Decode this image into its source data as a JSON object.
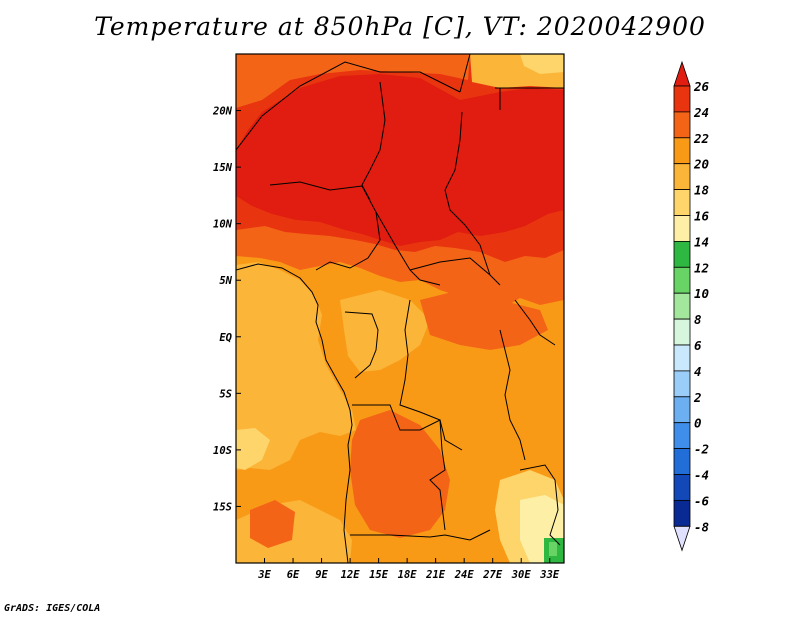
{
  "title": "Temperature at 850hPa [C], VT: 2020042900",
  "credit": "GrADS: IGES/COLA",
  "map": {
    "lon_range": [
      0,
      34.5
    ],
    "lat_range": [
      -20,
      25
    ],
    "lon_ticks": [
      {
        "value": 3,
        "label": "3E"
      },
      {
        "value": 6,
        "label": "6E"
      },
      {
        "value": 9,
        "label": "9E"
      },
      {
        "value": 12,
        "label": "12E"
      },
      {
        "value": 15,
        "label": "15E"
      },
      {
        "value": 18,
        "label": "18E"
      },
      {
        "value": 21,
        "label": "21E"
      },
      {
        "value": 24,
        "label": "24E"
      },
      {
        "value": 27,
        "label": "27E"
      },
      {
        "value": 30,
        "label": "30E"
      },
      {
        "value": 33,
        "label": "33E"
      }
    ],
    "lat_ticks": [
      {
        "value": 20,
        "label": "20N"
      },
      {
        "value": 15,
        "label": "15N"
      },
      {
        "value": 10,
        "label": "10N"
      },
      {
        "value": 5,
        "label": "5N"
      },
      {
        "value": 0,
        "label": "EQ"
      },
      {
        "value": -5,
        "label": "5S"
      },
      {
        "value": -10,
        "label": "10S"
      },
      {
        "value": -15,
        "label": "15S"
      }
    ]
  },
  "colorbar": {
    "levels": [
      26,
      24,
      22,
      20,
      18,
      16,
      14,
      12,
      10,
      8,
      6,
      4,
      2,
      0,
      -2,
      -4,
      -6,
      -8
    ],
    "labels": [
      "26",
      "24",
      "22",
      "20",
      "18",
      "16",
      "14",
      "12",
      "10",
      "8",
      "6",
      "4",
      "2",
      "0",
      "-2",
      "-4",
      "-6",
      "-8"
    ],
    "colors": [
      "#e62a13",
      "#f15a16",
      "#f98814",
      "#fba727",
      "#fdc54d",
      "#fde37f",
      "#fff8b0",
      "#3cc24a",
      "#7ddb7a",
      "#b5ecb0",
      "#e4f9f5",
      "#bfe3fb",
      "#8dc6f8",
      "#5da8f3",
      "#2f86e8",
      "#1763d2",
      "#0b3ea7",
      "#061a7c",
      "#0a0a55",
      "#e0e0ff"
    ]
  },
  "legend_colors": {
    "above_26": "#e01d10",
    "c24_26": "#e8350f",
    "c22_24": "#f46417",
    "c20_22": "#f99a17",
    "c18_20": "#fbb539",
    "c16_18": "#fdd56b",
    "c14_16": "#fdf0a6",
    "c12_14": "#2fb841",
    "c10_12": "#67d465",
    "c8_10": "#a3e79c",
    "c6_8": "#d6f6dd",
    "c4_6": "#c9e8fb",
    "c2_4": "#9acdf7",
    "c0_2": "#6db0f2",
    "cm2_0": "#3f8ee9",
    "cm4_m2": "#226ed8",
    "cm6_m4": "#1248b7",
    "cm8_m6": "#0a2a93",
    "below_m8": "#1a1a70"
  }
}
